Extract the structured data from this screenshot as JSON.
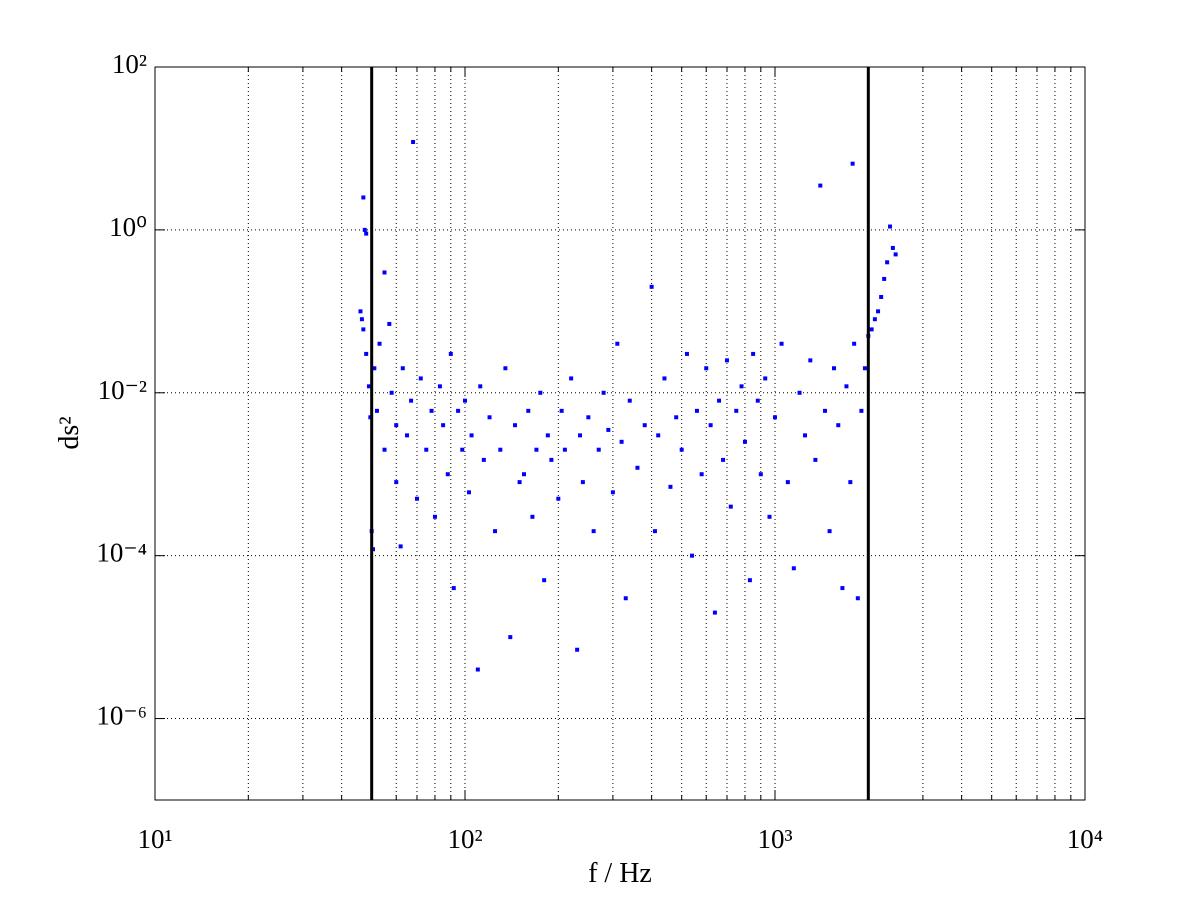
{
  "chart_data": {
    "type": "scatter",
    "x_label": "f / Hz",
    "y_label": "ds²",
    "xscale": "log",
    "yscale": "log",
    "grid": true,
    "color": "#0000ff",
    "vline_color": "#000000",
    "xlim": [
      10,
      10000
    ],
    "ylim": [
      1e-07,
      100
    ],
    "xticks": [
      {
        "value": 10,
        "label": "10¹"
      },
      {
        "value": 100,
        "label": "10²"
      },
      {
        "value": 1000,
        "label": "10³"
      },
      {
        "value": 10000,
        "label": "10⁴"
      }
    ],
    "xminorticks": [
      20,
      30,
      40,
      50,
      60,
      70,
      80,
      90,
      200,
      300,
      400,
      500,
      600,
      700,
      800,
      900,
      2000,
      3000,
      4000,
      5000,
      6000,
      7000,
      8000,
      9000
    ],
    "yticks": [
      {
        "value": 1e-06,
        "label": "10⁻⁶"
      },
      {
        "value": 0.0001,
        "label": "10⁻⁴"
      },
      {
        "value": 0.01,
        "label": "10⁻²"
      },
      {
        "value": 1,
        "label": "10⁰"
      },
      {
        "value": 100,
        "label": "10²"
      }
    ],
    "vlines": [
      50,
      2000
    ],
    "x": [
      46,
      46.5,
      47,
      47,
      47.5,
      48,
      48,
      49,
      49.5,
      50,
      50.5,
      51,
      52,
      53,
      55,
      55,
      57,
      58,
      60,
      60,
      62,
      63,
      65,
      67,
      68,
      70,
      72,
      75,
      78,
      80,
      83,
      85,
      88,
      90,
      92,
      95,
      98,
      100,
      103,
      105,
      110,
      112,
      115,
      120,
      125,
      130,
      135,
      140,
      145,
      150,
      155,
      160,
      165,
      170,
      175,
      180,
      185,
      190,
      200,
      205,
      210,
      220,
      230,
      235,
      240,
      250,
      260,
      270,
      280,
      290,
      300,
      310,
      320,
      330,
      340,
      360,
      380,
      400,
      410,
      420,
      440,
      460,
      480,
      500,
      520,
      540,
      560,
      580,
      600,
      620,
      640,
      660,
      680,
      700,
      720,
      750,
      780,
      800,
      830,
      850,
      880,
      900,
      930,
      960,
      1000,
      1050,
      1100,
      1150,
      1200,
      1250,
      1300,
      1350,
      1400,
      1450,
      1500,
      1550,
      1600,
      1650,
      1700,
      1750,
      1780,
      1800,
      1850,
      1900,
      1950,
      2000,
      2050,
      2100,
      2150,
      2200,
      2250,
      2300,
      2350,
      2400,
      2450
    ],
    "values": [
      0.1,
      0.08,
      0.06,
      2.5,
      1.0,
      0.9,
      0.03,
      0.012,
      0.005,
      0.0002,
      0.00012,
      0.02,
      0.006,
      0.04,
      0.002,
      0.3,
      0.07,
      0.01,
      0.0008,
      0.004,
      0.00013,
      0.02,
      0.003,
      0.008,
      12,
      0.0005,
      0.015,
      0.002,
      0.006,
      0.0003,
      0.012,
      0.004,
      0.001,
      0.03,
      4e-05,
      0.006,
      0.002,
      0.008,
      0.0006,
      0.003,
      4e-06,
      0.012,
      0.0015,
      0.005,
      0.0002,
      0.002,
      0.02,
      1e-05,
      0.004,
      0.0008,
      0.001,
      0.006,
      0.0003,
      0.002,
      0.01,
      5e-05,
      0.003,
      0.0015,
      0.0005,
      0.006,
      0.002,
      0.015,
      7e-06,
      0.003,
      0.0008,
      0.005,
      0.0002,
      0.002,
      0.01,
      0.0035,
      0.0006,
      0.04,
      0.0025,
      3e-05,
      0.008,
      0.0012,
      0.004,
      0.2,
      0.0002,
      0.003,
      0.015,
      0.0007,
      0.005,
      0.002,
      0.03,
      0.0001,
      0.006,
      0.001,
      0.02,
      0.004,
      2e-05,
      0.008,
      0.0015,
      0.025,
      0.0004,
      0.006,
      0.012,
      0.0025,
      5e-05,
      0.03,
      0.008,
      0.001,
      0.015,
      0.0003,
      0.005,
      0.04,
      0.0008,
      7e-05,
      0.01,
      0.003,
      0.025,
      0.0015,
      3.5,
      0.006,
      0.0002,
      0.02,
      0.004,
      4e-05,
      0.012,
      0.0008,
      6.5,
      0.04,
      3e-05,
      0.006,
      0.02,
      0.05,
      0.06,
      0.08,
      0.1,
      0.15,
      0.25,
      0.4,
      1.1,
      0.6,
      0.5
    ]
  }
}
